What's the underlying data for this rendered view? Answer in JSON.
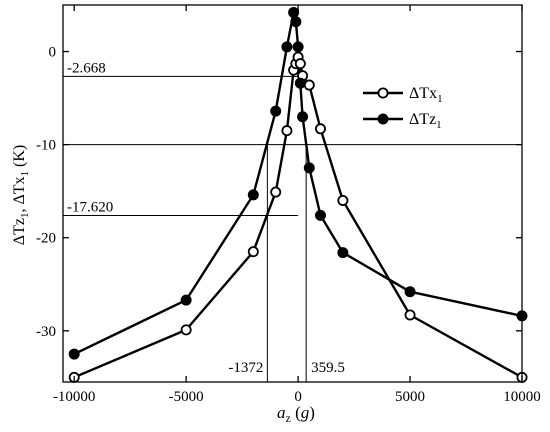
{
  "chart_data": {
    "type": "line",
    "title": "",
    "xlabel": "",
    "ylabel": "",
    "xlabel_parts": {
      "main": "a",
      "sub": "z",
      "unit": "g"
    },
    "ylabel_parts": [
      "ΔTz",
      "1",
      ", ΔTx",
      "1",
      " (K)"
    ],
    "xlim": [
      -10500,
      10000
    ],
    "ylim": [
      -35.5,
      5
    ],
    "x_ticks": [
      -10000,
      -5000,
      0,
      5000,
      10000
    ],
    "x_tick_labels": [
      "-10000",
      "-5000",
      "0",
      "5000",
      "10000"
    ],
    "y_ticks": [
      0,
      -10,
      -20,
      -30
    ],
    "y_tick_labels": [
      "0",
      "-10",
      "-20",
      "-30"
    ],
    "grid": false,
    "legend_position": "right",
    "series": [
      {
        "name": "ΔTx1",
        "legend": {
          "main": "ΔTx",
          "sub": "1"
        },
        "marker": "open-circle",
        "x": [
          -10000,
          -5000,
          -2000,
          -1000,
          -500,
          -200,
          -100,
          0,
          100,
          200,
          500,
          1000,
          2000,
          5000,
          10000
        ],
        "y": [
          -35.0,
          -29.9,
          -21.5,
          -15.1,
          -8.5,
          -2.0,
          -1.3,
          -0.6,
          -1.3,
          -2.6,
          -3.6,
          -8.3,
          -16.0,
          -28.3,
          -35.0
        ]
      },
      {
        "name": "ΔTz1",
        "legend": {
          "main": "ΔTz",
          "sub": "1"
        },
        "marker": "filled-circle",
        "x": [
          -10000,
          -5000,
          -2000,
          -1000,
          -500,
          -200,
          -100,
          0,
          100,
          200,
          500,
          1000,
          2000,
          5000,
          10000
        ],
        "y": [
          -32.5,
          -26.7,
          -15.4,
          -6.4,
          0.5,
          4.2,
          3.2,
          0.5,
          -3.4,
          -7.0,
          -12.5,
          -17.6,
          -21.6,
          -25.8,
          -28.4
        ]
      }
    ],
    "reference_lines": [
      {
        "orientation": "horizontal",
        "y": -2.668,
        "label": "-2.668",
        "x_from": -10500,
        "x_to": 0
      },
      {
        "orientation": "horizontal",
        "y": -10,
        "label": "",
        "x_from": -10500,
        "x_to": 10000
      },
      {
        "orientation": "horizontal",
        "y": -17.62,
        "label": "-17.620",
        "x_from": -10500,
        "x_to": 0
      },
      {
        "orientation": "vertical",
        "x": -1372,
        "label": "-1372",
        "y_from": -35.5,
        "y_to": -10
      },
      {
        "orientation": "vertical",
        "x": 359.5,
        "label": "359.5",
        "y_from": -35.5,
        "y_to": -10
      }
    ]
  }
}
